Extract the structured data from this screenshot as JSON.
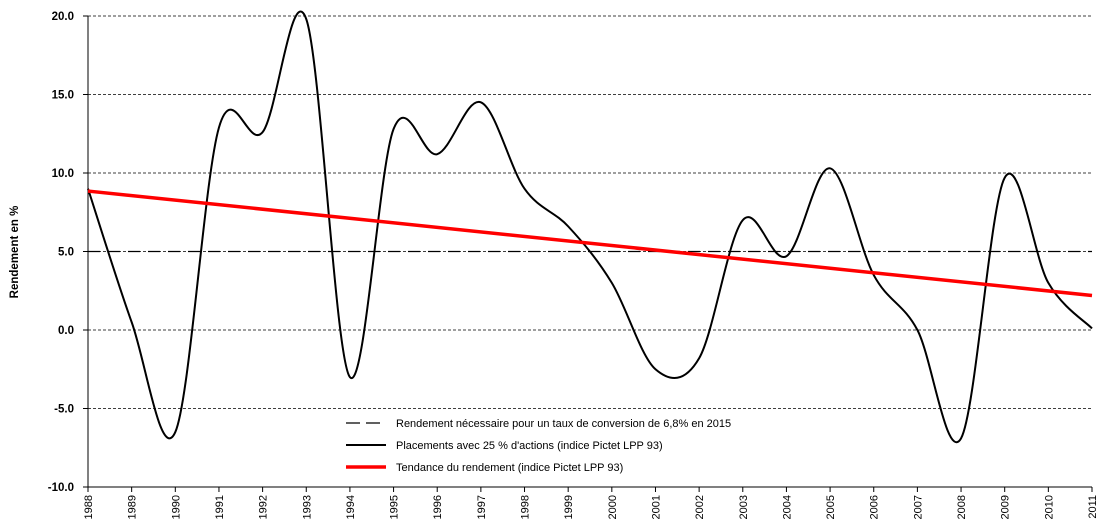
{
  "chart_data": {
    "type": "line",
    "y_label": "Rendement en %",
    "xlim": [
      1988,
      2011
    ],
    "xticks": [
      1988,
      1989,
      1990,
      1991,
      1992,
      1993,
      1994,
      1995,
      1996,
      1997,
      1998,
      1999,
      2000,
      2001,
      2002,
      2003,
      2004,
      2005,
      2006,
      2007,
      2008,
      2009,
      2010,
      2011
    ],
    "ylim": [
      -10,
      20
    ],
    "yticks": [
      {
        "value": -10,
        "label": "-10.0"
      },
      {
        "value": -5,
        "label": "-5.0"
      },
      {
        "value": 0,
        "label": "0.0"
      },
      {
        "value": 5,
        "label": "5.0"
      },
      {
        "value": 10,
        "label": "10.0"
      },
      {
        "value": 15,
        "label": "15.0"
      },
      {
        "value": 20,
        "label": "20.0"
      }
    ],
    "grid": true,
    "legend": "bottom-center",
    "series": [
      {
        "name": "Rendement nécessaire pour un taux de conversion de 6,8% en 2015",
        "color": "#000000",
        "dash": true,
        "smooth": false,
        "x": [
          1988,
          2011
        ],
        "values": [
          5,
          5
        ]
      },
      {
        "name": "Placements avec 25 % d'actions (indice Pictet LPP 93)",
        "color": "#000000",
        "dash": false,
        "smooth": true,
        "x": [
          1988,
          1989,
          1990,
          1991,
          1992,
          1993,
          1994,
          1995,
          1996,
          1997,
          1998,
          1999,
          2000,
          2001,
          2002,
          2003,
          2004,
          2005,
          2006,
          2007,
          2008,
          2009,
          2010,
          2011
        ],
        "values": [
          9.0,
          0.5,
          -6.5,
          12.9,
          12.6,
          19.8,
          -3.0,
          12.8,
          11.2,
          14.5,
          9.0,
          6.6,
          3.0,
          -2.5,
          -1.8,
          7.0,
          4.7,
          10.3,
          3.5,
          0.0,
          -6.9,
          9.7,
          3.0,
          0.1
        ]
      },
      {
        "name": "Tendance du rendement (indice Pictet LPP 93)",
        "color": "#ff0000",
        "dash": false,
        "smooth": false,
        "x": [
          1988,
          2011
        ],
        "values": [
          8.85,
          2.2
        ]
      }
    ]
  }
}
